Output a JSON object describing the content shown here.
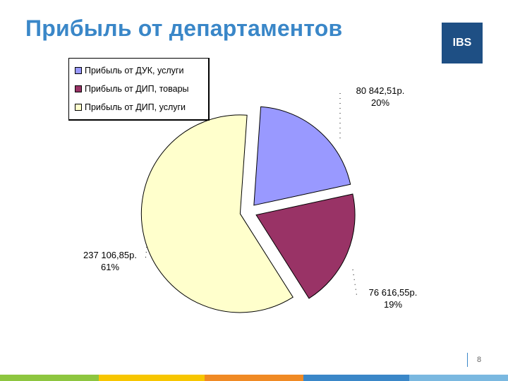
{
  "slide": {
    "title": "Прибыль от департаментов",
    "logo_text": "IBS",
    "page_number": "8"
  },
  "colors": {
    "title": "#3a87c8",
    "logo_bg": "#1e4f84",
    "slice_1": "#9999ff",
    "slice_2": "#993366",
    "slice_3": "#ffffcc"
  },
  "chart_data": {
    "type": "pie",
    "exploded": true,
    "legend_position": "top-left",
    "categories": [
      "Прибыль от ДУК, услуги",
      "Прибыль от ДИП, товары",
      "Прибыль от ДИП, услуги"
    ],
    "values": [
      80842.51,
      76616.55,
      237106.85
    ],
    "percents": [
      20,
      19,
      61
    ],
    "value_labels": [
      "80 842,51р.",
      "76 616,55р.",
      "237 106,85р."
    ],
    "percent_labels": [
      "20%",
      "19%",
      "61%"
    ]
  }
}
